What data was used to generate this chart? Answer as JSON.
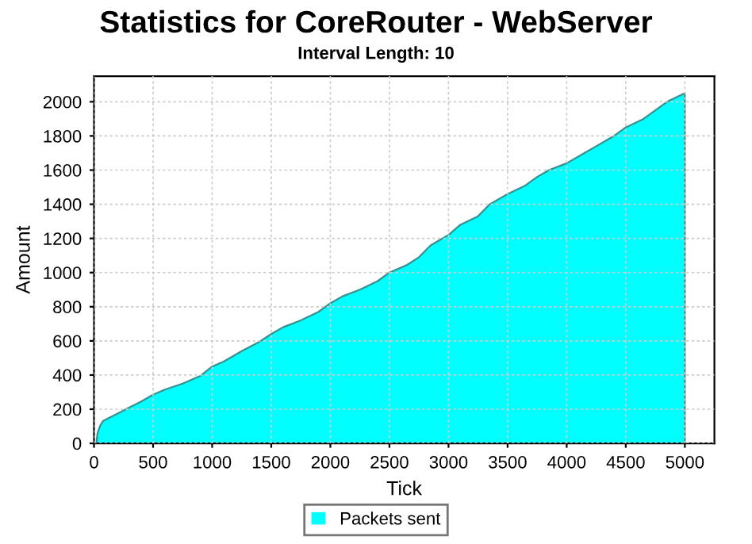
{
  "chart_data": {
    "type": "area",
    "title": "Statistics for CoreRouter - WebServer",
    "subtitle": "Interval Length: 10",
    "xlabel": "Tick",
    "ylabel": "Amount",
    "series": [
      {
        "name": "Packets sent",
        "color": "#00ffff",
        "x": [
          0,
          20,
          30,
          50,
          75,
          100,
          200,
          300,
          400,
          500,
          600,
          750,
          900,
          1000,
          1100,
          1250,
          1400,
          1500,
          1600,
          1750,
          1900,
          2000,
          2100,
          2250,
          2400,
          2500,
          2650,
          2750,
          2850,
          3000,
          3100,
          3250,
          3350,
          3500,
          3650,
          3750,
          3850,
          4000,
          4150,
          4250,
          4400,
          4500,
          4650,
          4750,
          4850,
          5000
        ],
        "values": [
          0,
          0,
          60,
          100,
          130,
          140,
          175,
          210,
          245,
          285,
          315,
          350,
          395,
          450,
          480,
          540,
          595,
          640,
          680,
          720,
          770,
          820,
          860,
          900,
          950,
          1000,
          1045,
          1090,
          1160,
          1220,
          1280,
          1330,
          1400,
          1460,
          1510,
          1560,
          1600,
          1640,
          1700,
          1740,
          1800,
          1850,
          1900,
          1950,
          2000,
          2050
        ]
      }
    ],
    "xlim": [
      0,
      5250
    ],
    "ylim": [
      0,
      2150
    ],
    "xticks": [
      0,
      500,
      1000,
      1500,
      2000,
      2500,
      3000,
      3500,
      4000,
      4500,
      5000
    ],
    "yticks": [
      0,
      200,
      400,
      600,
      800,
      1000,
      1200,
      1400,
      1600,
      1800,
      2000
    ],
    "grid": true,
    "legend": "bottom"
  }
}
